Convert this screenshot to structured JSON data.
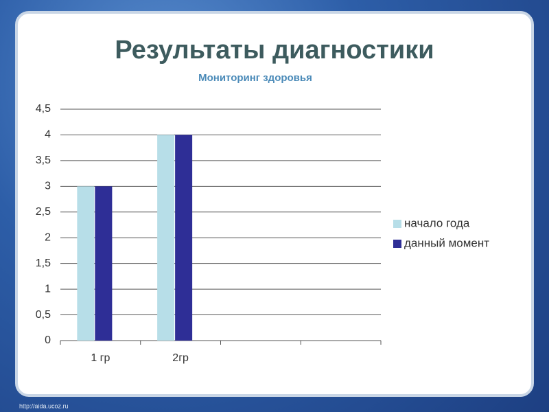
{
  "chart_data": {
    "type": "bar",
    "title": "Результаты диагностики",
    "subtitle": "Мониторинг здоровья",
    "categories": [
      "1 гр",
      "2гр",
      null,
      null
    ],
    "series": [
      {
        "name": "начало года",
        "color": "#b7dee8",
        "values": [
          3,
          4,
          null,
          null
        ]
      },
      {
        "name": "данный момент",
        "color": "#2e2e96",
        "values": [
          3,
          4,
          null,
          null
        ]
      }
    ],
    "ylim": [
      0,
      4.5
    ],
    "yticks": [
      0,
      {
        "value": 0.5,
        "label": "0,5"
      },
      1,
      {
        "value": 1.5,
        "label": "1,5"
      },
      2,
      {
        "value": 2.5,
        "label": "2,5"
      },
      3,
      {
        "value": 3.5,
        "label": "3,5"
      },
      4,
      {
        "value": 4.5,
        "label": "4,5"
      }
    ],
    "grid": true,
    "legend": "right"
  },
  "footer": "http://aida.ucoz.ru"
}
